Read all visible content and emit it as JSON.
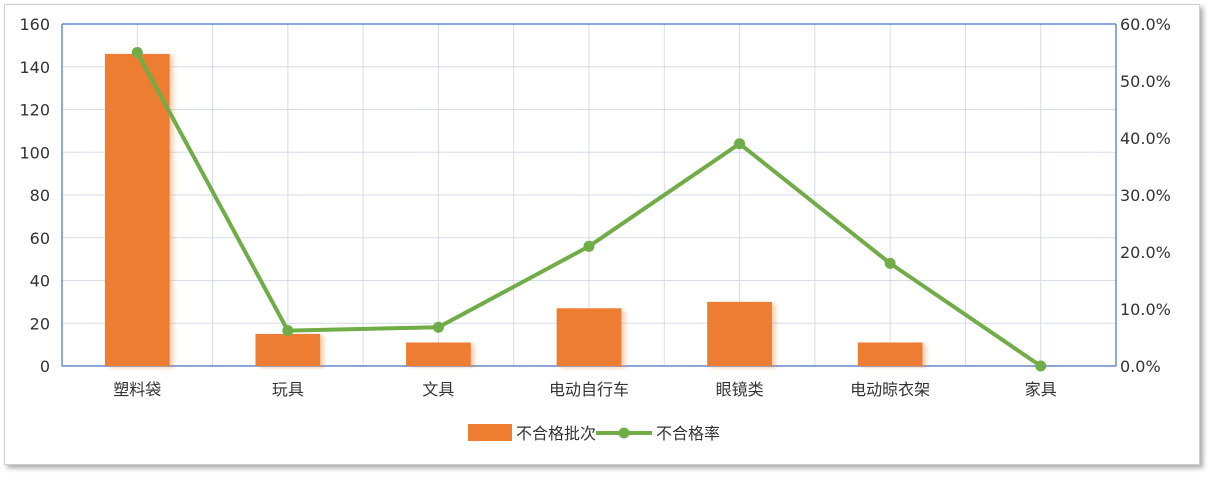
{
  "chart_data": {
    "type": "bar+line",
    "categories": [
      "塑料袋",
      "玩具",
      "文具",
      "电动自行车",
      "眼镜类",
      "电动晾衣架",
      "家具"
    ],
    "series": [
      {
        "name": "不合格批次",
        "type": "bar",
        "axis": "left",
        "values": [
          146,
          15,
          11,
          27,
          30,
          11,
          0
        ]
      },
      {
        "name": "不合格率",
        "type": "line",
        "axis": "right",
        "values": [
          0.55,
          0.062,
          0.068,
          0.21,
          0.39,
          0.18,
          0.0
        ]
      }
    ],
    "y_left": {
      "ylim": [
        0,
        160
      ],
      "ticks": [
        "0",
        "20",
        "40",
        "60",
        "80",
        "100",
        "120",
        "140",
        "160"
      ]
    },
    "y_right": {
      "ylim": [
        0,
        0.6
      ],
      "ticks": [
        "0.0%",
        "10.0%",
        "20.0%",
        "30.0%",
        "40.0%",
        "50.0%",
        "60.0%"
      ]
    },
    "grid": true,
    "legend": "bottom-center",
    "colors": {
      "bar": "#ED7D31",
      "line": "#70AD47",
      "grid": "#D6DCE8",
      "axis": "#4472C4"
    }
  }
}
